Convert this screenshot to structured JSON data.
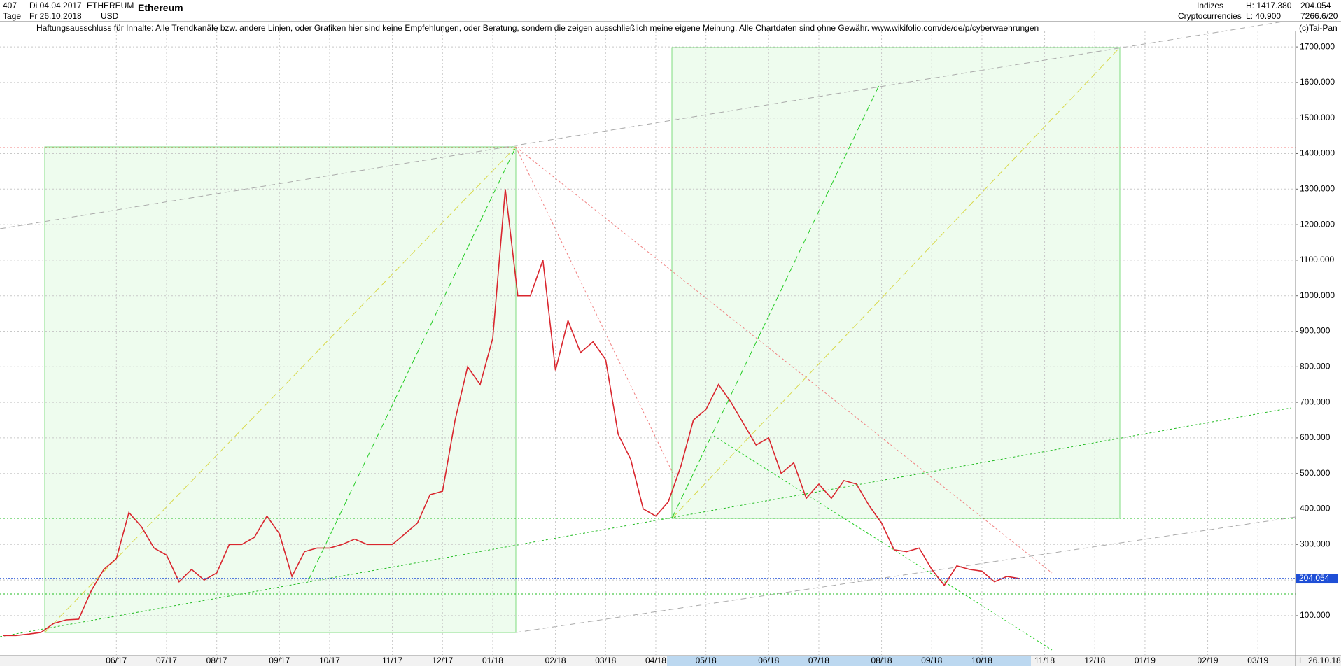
{
  "header": {
    "count": "407",
    "period": "Tage",
    "from": "Di 04.04.2017",
    "to": "Fr 26.10.2018",
    "symbol": "ETHEREUM",
    "currency": "USD",
    "group": "Indizes",
    "subgroup": "Cryptocurrencies",
    "high": "H: 1417.380",
    "low": "L: 40.900",
    "last": "204.054",
    "code": "7266.6/20",
    "end_date": "26.10.18",
    "scale_mode": "L"
  },
  "chart_data": {
    "type": "line",
    "title": "Ethereum",
    "subtitle": "Haftungsausschluss für Inhalte: Alle Trendkanäle bzw. andere Linien, oder Grafiken hier sind keine Empfehlungen, oder Beratung, sondern die zeigen ausschließlich meine eigene Meinung. Alle Chartdaten sind ohne Gewähr.  www.wikifolio.com/de/de/p/cyberwaehrungen",
    "source": "(c)Tai-Pan",
    "color": "#d9262e",
    "categories": [
      null,
      null,
      null,
      null,
      null,
      null,
      null,
      null,
      null,
      "06/17",
      null,
      null,
      null,
      "07/17",
      null,
      null,
      null,
      "08/17",
      null,
      null,
      null,
      null,
      "09/17",
      null,
      null,
      null,
      "10/17",
      null,
      null,
      null,
      null,
      "11/17",
      null,
      null,
      null,
      "12/17",
      null,
      null,
      null,
      "01/18",
      null,
      null,
      null,
      null,
      "02/18",
      null,
      null,
      null,
      "03/18",
      null,
      null,
      null,
      "04/18",
      null,
      null,
      null,
      "05/18",
      null,
      null,
      null,
      null,
      "06/18",
      null,
      null,
      null,
      "07/18",
      null,
      null,
      null,
      null,
      "08/18",
      null,
      null,
      null,
      "09/18",
      null,
      null,
      null,
      "10/18",
      null,
      null,
      null,
      null,
      "11/18",
      null,
      null,
      null,
      "12/18",
      null,
      null,
      null,
      "01/19",
      null,
      null,
      null,
      null,
      "02/19",
      null,
      null,
      null,
      "03/19",
      null,
      null
    ],
    "values": [
      44,
      44,
      48,
      53,
      78,
      88,
      90,
      170,
      230,
      260,
      390,
      350,
      290,
      270,
      195,
      230,
      200,
      220,
      300,
      300,
      320,
      380,
      330,
      210,
      280,
      290,
      290,
      300,
      315,
      300,
      300,
      300,
      330,
      360,
      440,
      450,
      650,
      800,
      750,
      880,
      1300,
      1000,
      1000,
      1100,
      790,
      930,
      840,
      870,
      820,
      610,
      540,
      400,
      380,
      420,
      520,
      650,
      680,
      750,
      700,
      640,
      580,
      600,
      500,
      530,
      430,
      470,
      430,
      480,
      470,
      410,
      360,
      285,
      280,
      290,
      230,
      185,
      240,
      230,
      225,
      195,
      210,
      204,
      null,
      null,
      null,
      null,
      null,
      null,
      null,
      null,
      null,
      null,
      null,
      null,
      null,
      null,
      null,
      null,
      null,
      null,
      null,
      null,
      null
    ],
    "ylim": [
      0,
      1740
    ],
    "yticks": [
      {
        "value": 100,
        "label": "100.000"
      },
      {
        "value": 200,
        "label": "200.000"
      },
      {
        "value": 300,
        "label": "300.000"
      },
      {
        "value": 400,
        "label": "400.000"
      },
      {
        "value": 500,
        "label": "500.000"
      },
      {
        "value": 600,
        "label": "600.000"
      },
      {
        "value": 700,
        "label": "700.000"
      },
      {
        "value": 800,
        "label": "800.000"
      },
      {
        "value": 900,
        "label": "900.000"
      },
      {
        "value": 1000,
        "label": "1000.000"
      },
      {
        "value": 1100,
        "label": "1100.000"
      },
      {
        "value": 1200,
        "label": "1200.000"
      },
      {
        "value": 1300,
        "label": "1300.000"
      },
      {
        "value": 1400,
        "label": "1400.000"
      },
      {
        "value": 1500,
        "label": "1500.000"
      },
      {
        "value": 1600,
        "label": "1600.000"
      },
      {
        "value": 1700,
        "label": "1700.000"
      }
    ],
    "last_value": {
      "value": 204.054,
      "label": "204.054",
      "color": "#1f4fd6"
    },
    "grid": true
  }
}
